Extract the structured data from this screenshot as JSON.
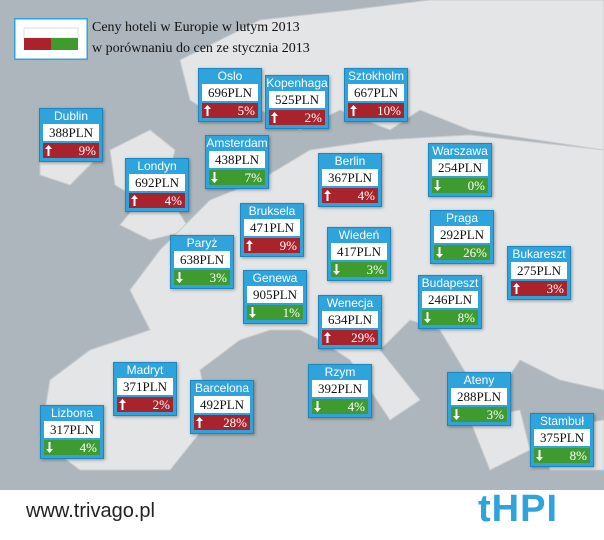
{
  "legend": {
    "line1": "Ceny hoteli w Europie w lutym 2013",
    "line2": "w porównaniu do cen ze stycznia 2013"
  },
  "cities": [
    {
      "name": "Oslo",
      "price": "696PLN",
      "change": "5%",
      "direction": "up"
    },
    {
      "name": "Kopenhaga",
      "price": "525PLN",
      "change": "2%",
      "direction": "up"
    },
    {
      "name": "Sztokholm",
      "price": "667PLN",
      "change": "10%",
      "direction": "up"
    },
    {
      "name": "Dublin",
      "price": "388PLN",
      "change": "9%",
      "direction": "up"
    },
    {
      "name": "Amsterdam",
      "price": "438PLN",
      "change": "7%",
      "direction": "down"
    },
    {
      "name": "Londyn",
      "price": "692PLN",
      "change": "4%",
      "direction": "up"
    },
    {
      "name": "Berlin",
      "price": "367PLN",
      "change": "4%",
      "direction": "up"
    },
    {
      "name": "Warszawa",
      "price": "254PLN",
      "change": "0%",
      "direction": "down"
    },
    {
      "name": "Bruksela",
      "price": "471PLN",
      "change": "9%",
      "direction": "up"
    },
    {
      "name": "Praga",
      "price": "292PLN",
      "change": "26%",
      "direction": "down"
    },
    {
      "name": "Paryż",
      "price": "638PLN",
      "change": "3%",
      "direction": "down"
    },
    {
      "name": "Wiedeń",
      "price": "417PLN",
      "change": "3%",
      "direction": "down"
    },
    {
      "name": "Bukareszt",
      "price": "275PLN",
      "change": "3%",
      "direction": "up"
    },
    {
      "name": "Genewa",
      "price": "905PLN",
      "change": "1%",
      "direction": "down"
    },
    {
      "name": "Budapeszt",
      "price": "246PLN",
      "change": "8%",
      "direction": "down"
    },
    {
      "name": "Wenecja",
      "price": "634PLN",
      "change": "29%",
      "direction": "up"
    },
    {
      "name": "Madryt",
      "price": "371PLN",
      "change": "2%",
      "direction": "up"
    },
    {
      "name": "Rzym",
      "price": "392PLN",
      "change": "4%",
      "direction": "down"
    },
    {
      "name": "Barcelona",
      "price": "492PLN",
      "change": "28%",
      "direction": "up"
    },
    {
      "name": "Ateny",
      "price": "288PLN",
      "change": "3%",
      "direction": "down"
    },
    {
      "name": "Lizbona",
      "price": "317PLN",
      "change": "4%",
      "direction": "down"
    },
    {
      "name": "Stambuł",
      "price": "375PLN",
      "change": "8%",
      "direction": "down"
    }
  ],
  "footer": {
    "url": "www.trivago.pl",
    "logo": "tHPI"
  }
}
